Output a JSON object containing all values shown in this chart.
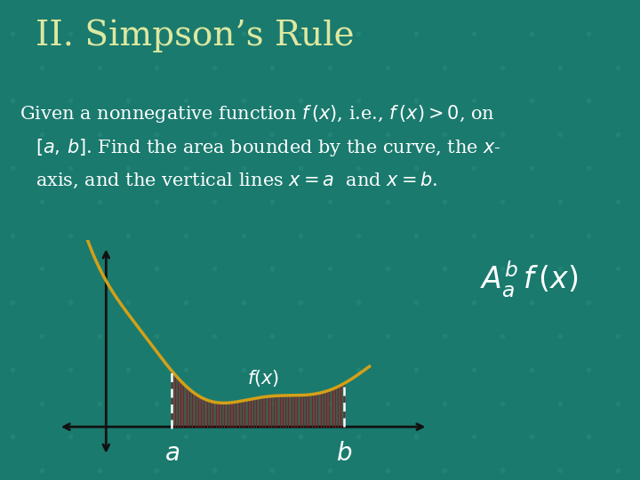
{
  "title": "II. Simpson’s Rule",
  "title_color": "#dde8a0",
  "title_fontsize": 28,
  "body_fontsize": 15,
  "body_color": "#ffffff",
  "bg_color": "#1a7a6e",
  "curve_color": "#d4a017",
  "fill_color": "#8b1a1a",
  "axis_color": "#111111",
  "dashed_color": "#ffffff",
  "label_color": "#ffffff",
  "fx_label": "$f(x)$",
  "a_label": "$a$",
  "b_label": "$b$",
  "area_label": "$A_a^b f(x)$"
}
